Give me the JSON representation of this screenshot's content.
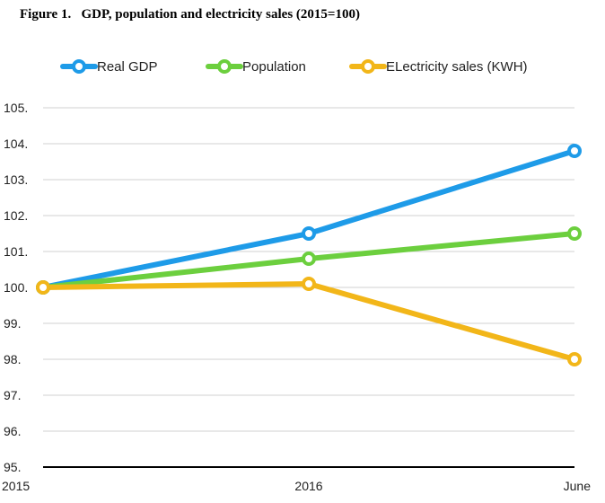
{
  "figure": {
    "title": "Figure 1.   GDP, population and electricity sales (2015=100)"
  },
  "chart_data": {
    "type": "line",
    "title": "GDP, population and electricity sales (2015=100)",
    "categories": [
      "2015",
      "2016",
      "June"
    ],
    "series": [
      {
        "name": "Real GDP",
        "color": "#1e9be8",
        "values": [
          100,
          101.5,
          103.8
        ]
      },
      {
        "name": "Population",
        "color": "#6ccf3e",
        "values": [
          100,
          100.8,
          101.5
        ]
      },
      {
        "name": "ELectricity sales (KWH)",
        "color": "#f2b619",
        "values": [
          100,
          100.1,
          98.0
        ]
      }
    ],
    "yticks": [
      "95.",
      "96.",
      "97.",
      "98.",
      "99.",
      "100.",
      "101.",
      "102.",
      "103.",
      "104.",
      "105."
    ],
    "ylim": [
      95,
      105
    ],
    "grid": true,
    "legend": "top"
  }
}
